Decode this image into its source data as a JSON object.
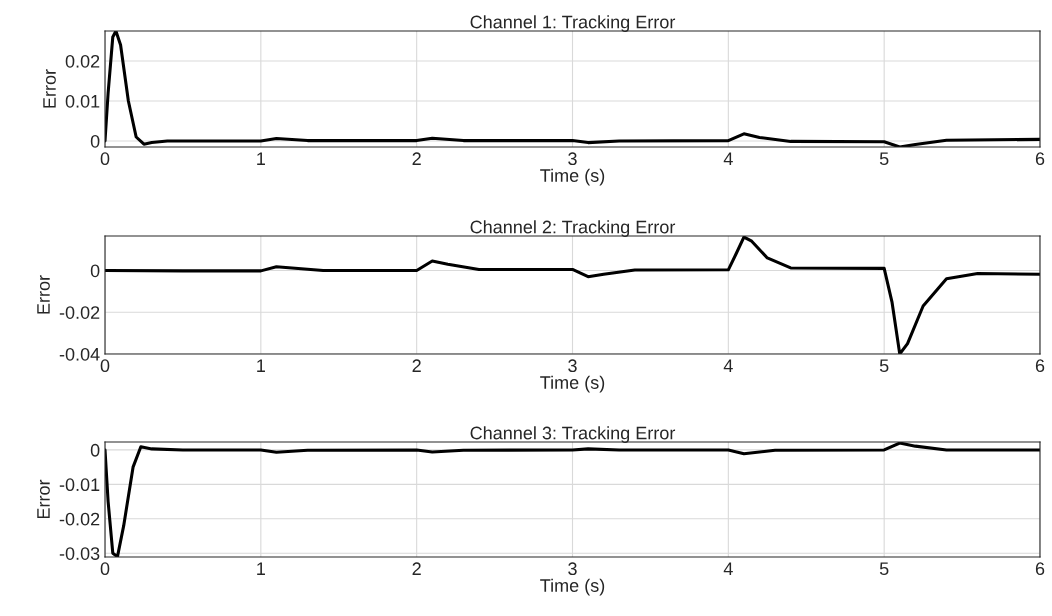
{
  "chart_data": [
    {
      "type": "line",
      "title": "Channel 1: Tracking Error",
      "xlabel": "Time (s)",
      "ylabel": "Error",
      "xlim": [
        0,
        6
      ],
      "xticks": [
        0,
        1,
        2,
        3,
        4,
        5,
        6
      ],
      "ylim": [
        -0.0015,
        0.0275
      ],
      "yticks": [
        0,
        0.01,
        0.02
      ],
      "grid": true,
      "line_style": "solid",
      "marker": "none",
      "series": [
        {
          "color": "#000000",
          "x": [
            0,
            0.02,
            0.05,
            0.07,
            0.1,
            0.15,
            0.2,
            0.25,
            0.3,
            0.4,
            1.0,
            1.1,
            1.3,
            2.0,
            2.1,
            2.3,
            3.0,
            3.1,
            3.3,
            4.0,
            4.1,
            4.2,
            4.4,
            5.0,
            5.1,
            5.2,
            5.4,
            6.0
          ],
          "values": [
            0,
            0.012,
            0.026,
            0.0275,
            0.024,
            0.01,
            0.001,
            -0.0008,
            -0.0004,
            0,
            0,
            0.0006,
            0.0001,
            0.0001,
            0.0007,
            0.0001,
            0.0001,
            -0.0004,
            0,
            0.0001,
            0.0018,
            0.0009,
            -0.0001,
            -0.0002,
            -0.0015,
            -0.0009,
            0.0002,
            0.0004
          ]
        }
      ]
    },
    {
      "type": "line",
      "title": "Channel 2: Tracking Error",
      "xlabel": "Time (s)",
      "ylabel": "Error",
      "xlim": [
        0,
        6
      ],
      "xticks": [
        0,
        1,
        2,
        3,
        4,
        5,
        6
      ],
      "ylim": [
        -0.04,
        0.0165
      ],
      "yticks": [
        -0.04,
        -0.02,
        0
      ],
      "grid": true,
      "line_style": "solid",
      "marker": "none",
      "series": [
        {
          "color": "#000000",
          "x": [
            0,
            0.5,
            1.0,
            1.1,
            1.2,
            1.4,
            2.0,
            2.1,
            2.2,
            2.4,
            3.0,
            3.1,
            3.2,
            3.4,
            4.0,
            4.05,
            4.1,
            4.15,
            4.25,
            4.4,
            5.0,
            5.05,
            5.1,
            5.15,
            5.25,
            5.4,
            5.6,
            6.0
          ],
          "values": [
            0,
            -0.0002,
            -0.0002,
            0.0018,
            0.0012,
            0,
            0,
            0.0045,
            0.003,
            0.0005,
            0.0005,
            -0.003,
            -0.0018,
            0.0002,
            0.0003,
            0.008,
            0.016,
            0.014,
            0.006,
            0.0012,
            0.001,
            -0.015,
            -0.04,
            -0.035,
            -0.017,
            -0.004,
            -0.0015,
            -0.0018
          ]
        }
      ]
    },
    {
      "type": "line",
      "title": "Channel 3: Tracking Error",
      "xlabel": "Time (s)",
      "ylabel": "Error",
      "xlim": [
        0,
        6
      ],
      "xticks": [
        0,
        1,
        2,
        3,
        4,
        5,
        6
      ],
      "ylim": [
        -0.0311,
        0.0023
      ],
      "yticks": [
        -0.03,
        -0.02,
        -0.01,
        0
      ],
      "grid": true,
      "line_style": "solid",
      "marker": "none",
      "series": [
        {
          "color": "#000000",
          "x": [
            0,
            0.02,
            0.05,
            0.08,
            0.12,
            0.18,
            0.23,
            0.3,
            0.5,
            1.0,
            1.1,
            1.3,
            2.0,
            2.1,
            2.3,
            3.0,
            3.1,
            3.3,
            4.0,
            4.1,
            4.3,
            5.0,
            5.1,
            5.2,
            5.4,
            6.0
          ],
          "values": [
            0,
            -0.015,
            -0.03,
            -0.031,
            -0.022,
            -0.005,
            0.0009,
            0.0003,
            0,
            0,
            -0.0007,
            -0.0001,
            0,
            -0.0006,
            -0.0001,
            0,
            0.0003,
            0,
            0,
            -0.0011,
            -0.0001,
            0,
            0.002,
            0.0011,
            0,
            0
          ]
        }
      ]
    }
  ]
}
